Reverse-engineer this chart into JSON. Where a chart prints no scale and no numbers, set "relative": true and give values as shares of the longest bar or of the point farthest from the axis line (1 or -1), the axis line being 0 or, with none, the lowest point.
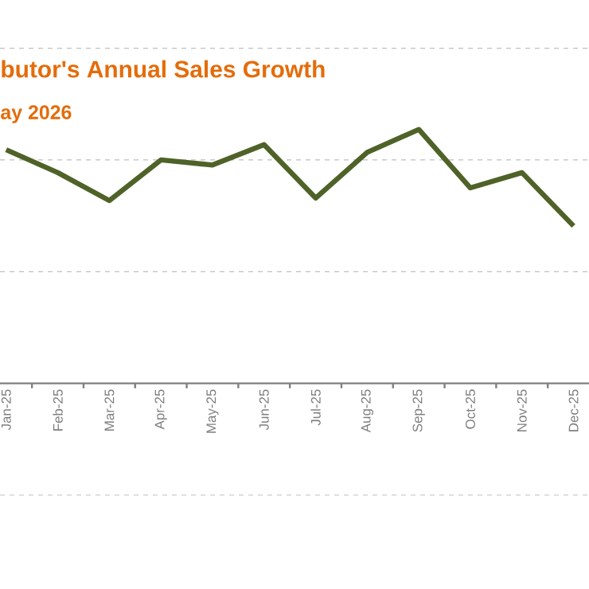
{
  "chart_data": {
    "type": "line",
    "title": "butor's Annual Sales Growth",
    "subtitle": "ay 2026",
    "categories": [
      "Jan-25",
      "Feb-25",
      "Mar-25",
      "Apr-25",
      "May-25",
      "Jun-25",
      "Jul-25",
      "Aug-25",
      "Sep-25",
      "Oct-25",
      "Nov-25",
      "Dec-25"
    ],
    "relative": true,
    "marker": "none",
    "line_style": "solid",
    "ref_lines": [
      {
        "axis": "y",
        "value": -0.44,
        "color": "#bfbfbf",
        "line_style": "dashed"
      },
      {
        "axis": "y",
        "value": 0.44,
        "color": "#bfbfbf",
        "line_style": "dashed"
      },
      {
        "axis": "y",
        "value": 0.88,
        "color": "#bfbfbf",
        "line_style": "dashed"
      },
      {
        "axis": "y",
        "value": 1.32,
        "color": "#bfbfbf",
        "line_style": "dashed"
      }
    ],
    "series": [
      {
        "color": "#4f6228",
        "values": [
          0.92,
          0.83,
          0.72,
          0.88,
          0.86,
          0.94,
          0.73,
          0.91,
          1,
          0.77,
          0.83,
          0.62
        ]
      }
    ]
  }
}
